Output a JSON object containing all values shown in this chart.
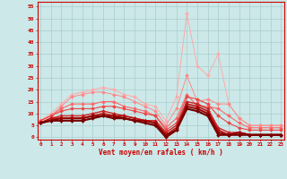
{
  "xlabel": "Vent moyen/en rafales ( km/h )",
  "background_color": "#cce8e8",
  "grid_color": "#aacece",
  "y_ticks": [
    0,
    5,
    10,
    15,
    20,
    25,
    30,
    35,
    40,
    45,
    50,
    55
  ],
  "ylim": [
    -1,
    57
  ],
  "xlim": [
    -0.3,
    23.3
  ],
  "lines": [
    {
      "color": "#ffaaaa",
      "lw": 0.7,
      "marker": "D",
      "ms": 2.0,
      "values": [
        7,
        10,
        14,
        18,
        19,
        20,
        21,
        20,
        18,
        17,
        14,
        13,
        7,
        17,
        52,
        30,
        26,
        35,
        14,
        8,
        5,
        5,
        5,
        5
      ]
    },
    {
      "color": "#ff8888",
      "lw": 0.7,
      "marker": "D",
      "ms": 2.0,
      "values": [
        7,
        9,
        13,
        17,
        18,
        19,
        19,
        18,
        17,
        15,
        13,
        11,
        5,
        12,
        26,
        15,
        16,
        14,
        14,
        8,
        5,
        5,
        5,
        5
      ]
    },
    {
      "color": "#ff6666",
      "lw": 0.8,
      "marker": "D",
      "ms": 2.0,
      "values": [
        7,
        9,
        12,
        14,
        14,
        14,
        15,
        15,
        13,
        12,
        11,
        9,
        4,
        8,
        18,
        13,
        13,
        12,
        9,
        6,
        4,
        4,
        4,
        4
      ]
    },
    {
      "color": "#ee4444",
      "lw": 0.8,
      "marker": "D",
      "ms": 2.0,
      "values": [
        7,
        9,
        11,
        12,
        12,
        12,
        13,
        13,
        12,
        11,
        10,
        9,
        3,
        6,
        17,
        16,
        14,
        9,
        6,
        4,
        3,
        3,
        3,
        3
      ]
    },
    {
      "color": "#cc2222",
      "lw": 1.0,
      "marker": "D",
      "ms": 2.0,
      "values": [
        6,
        8,
        9,
        9,
        9,
        10,
        11,
        10,
        9,
        8,
        7,
        7,
        2,
        5,
        15,
        14,
        12,
        4,
        2,
        2,
        1,
        1,
        1,
        1
      ]
    },
    {
      "color": "#bb1111",
      "lw": 1.2,
      "marker": "D",
      "ms": 2.0,
      "values": [
        6,
        8,
        8,
        8,
        8,
        9,
        10,
        9,
        9,
        8,
        7,
        6,
        1,
        4,
        14,
        13,
        11,
        3,
        1,
        2,
        1,
        1,
        1,
        1
      ]
    },
    {
      "color": "#990000",
      "lw": 1.4,
      "marker": "D",
      "ms": 2.0,
      "values": [
        6,
        7,
        8,
        8,
        8,
        9,
        9,
        9,
        8,
        7,
        7,
        6,
        1,
        3,
        13,
        12,
        10,
        2,
        1,
        2,
        1,
        1,
        1,
        1
      ]
    },
    {
      "color": "#770000",
      "lw": 1.6,
      "marker": "D",
      "ms": 2.0,
      "values": [
        6,
        7,
        7,
        7,
        7,
        8,
        9,
        8,
        8,
        7,
        6,
        5,
        0,
        3,
        12,
        11,
        9,
        1,
        1,
        1,
        1,
        1,
        1,
        1
      ]
    }
  ]
}
